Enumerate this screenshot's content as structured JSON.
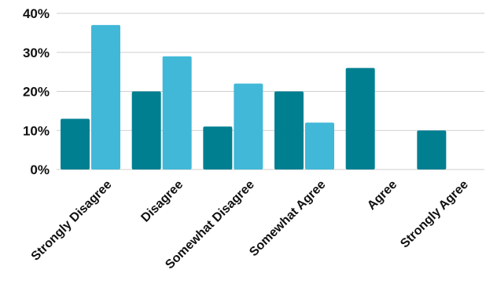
{
  "chart_data": {
    "type": "bar",
    "title": "",
    "xlabel": "",
    "ylabel": "",
    "categories": [
      "Strongly Disagree",
      "Disagree",
      "Somewhat Disagree",
      "Somewhat Agree",
      "Agree",
      "Strongly Agree"
    ],
    "series": [
      {
        "values": [
          13,
          20,
          11,
          20,
          26,
          10
        ],
        "color": "#007f91"
      },
      {
        "values": [
          37,
          29,
          22,
          12,
          0,
          0
        ],
        "color": "#41b8d8"
      }
    ],
    "y_ticks": [
      "0%",
      "10%",
      "20%",
      "30%",
      "40%"
    ],
    "ylim": [
      0,
      40
    ],
    "grid": true,
    "legend": "none"
  }
}
